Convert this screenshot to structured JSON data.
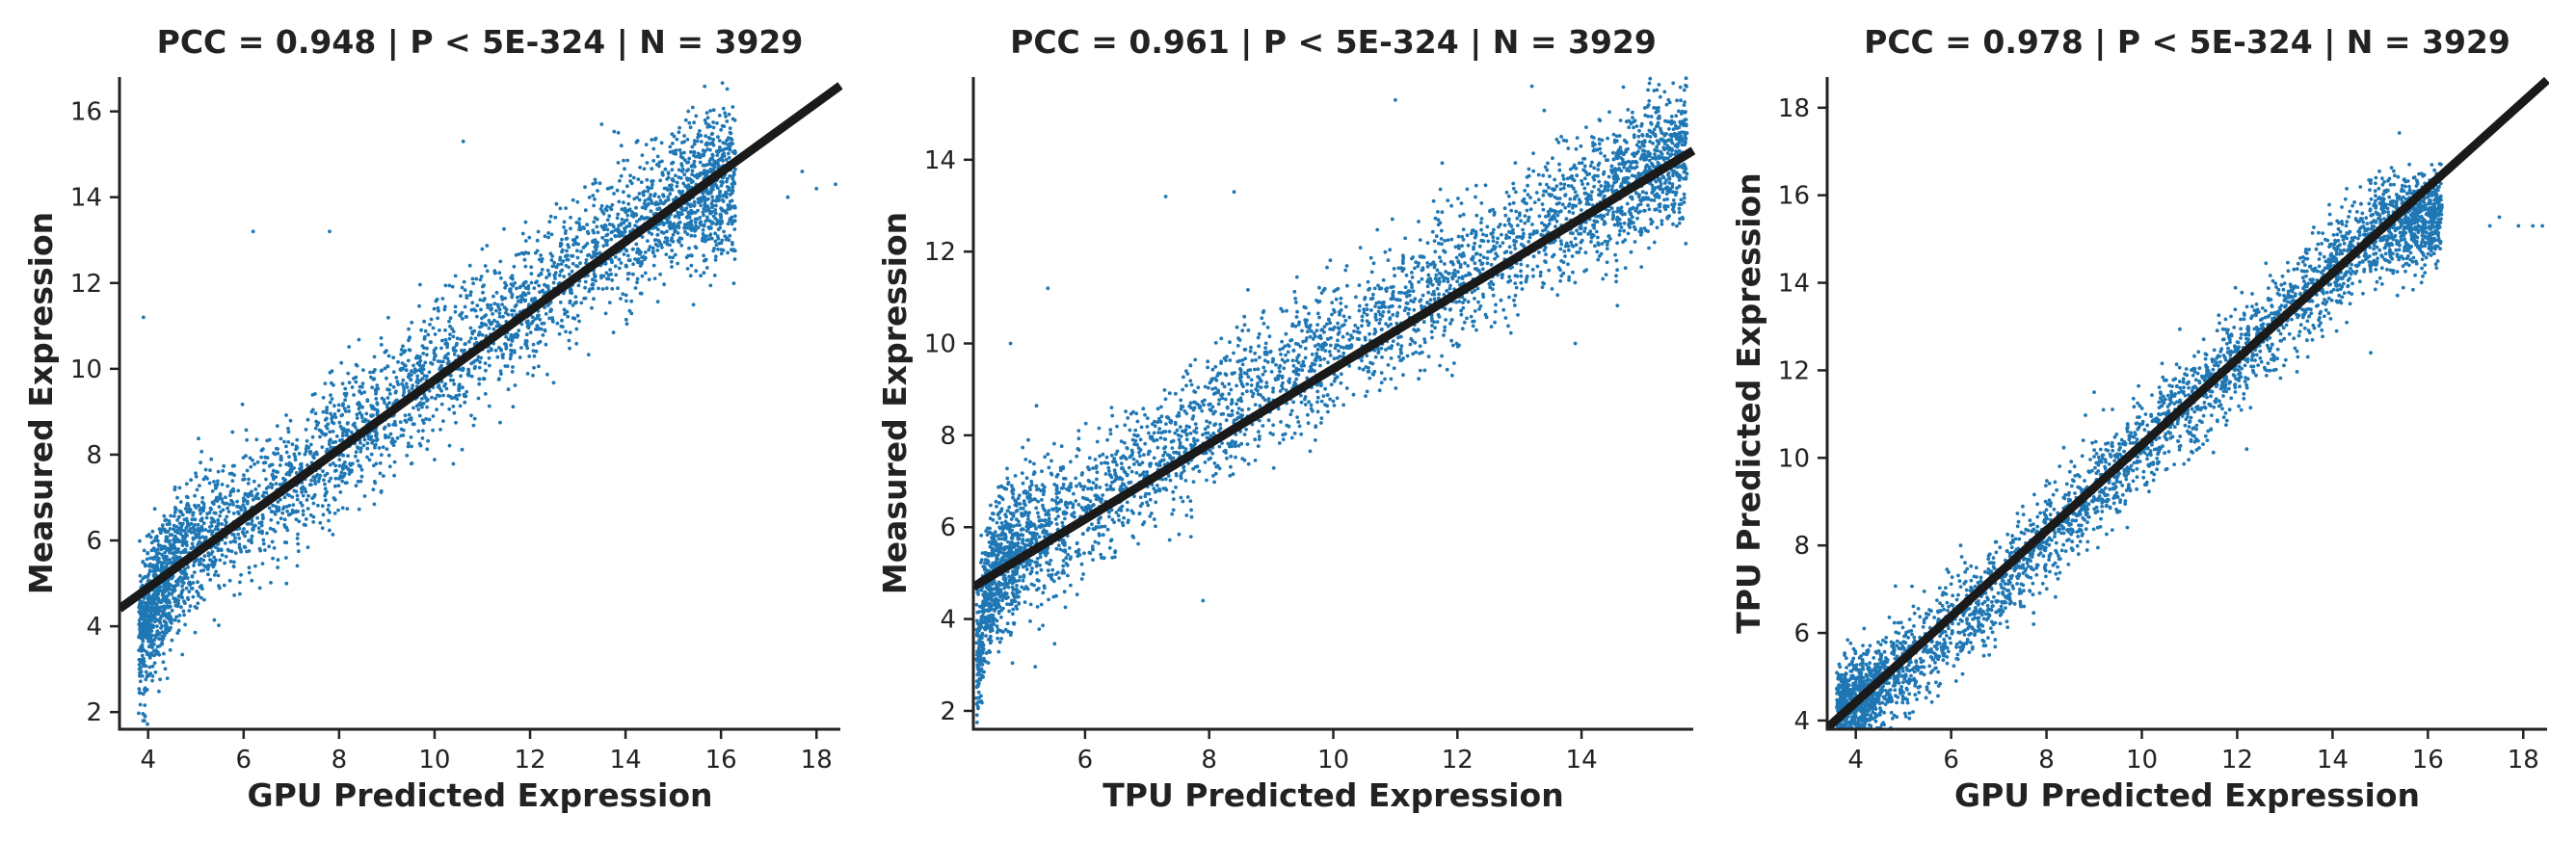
{
  "chart_data": [
    {
      "type": "scatter",
      "title": "PCC =  0.948 | P <  5E-324 | N = 3929",
      "xlabel": "GPU Predicted Expression",
      "ylabel": "Measured Expression",
      "xlim": [
        3.4,
        18.5
      ],
      "ylim": [
        1.6,
        16.8
      ],
      "xticks": [
        "4",
        "6",
        "8",
        "10",
        "12",
        "14",
        "16",
        "18"
      ],
      "yticks": [
        "2",
        "4",
        "6",
        "8",
        "10",
        "12",
        "14",
        "16"
      ],
      "point_color": "#1f77b4",
      "n_points": 3929,
      "point_cloud": {
        "trend": [
          [
            3.8,
            3.6
          ],
          [
            4.3,
            5.0
          ],
          [
            5,
            6.0
          ],
          [
            6,
            6.6
          ],
          [
            7,
            7.3
          ],
          [
            8,
            8.2
          ],
          [
            9,
            9.1
          ],
          [
            10,
            10.0
          ],
          [
            11,
            10.8
          ],
          [
            12,
            11.6
          ],
          [
            13,
            12.4
          ],
          [
            14,
            13.2
          ],
          [
            15,
            13.8
          ],
          [
            16,
            14.3
          ],
          [
            16.3,
            14.4
          ]
        ],
        "spread": 0.8,
        "outliers": [
          [
            17.4,
            14.0
          ],
          [
            17.7,
            14.6
          ],
          [
            18.0,
            14.2
          ],
          [
            18.4,
            14.3
          ],
          [
            6.2,
            13.2
          ],
          [
            3.9,
            11.2
          ],
          [
            10.6,
            15.3
          ],
          [
            13.5,
            15.7
          ],
          [
            7.8,
            13.2
          ]
        ]
      },
      "fit_line": {
        "x": [
          3.4,
          18.5
        ],
        "y": [
          4.41,
          16.6
        ]
      }
    },
    {
      "type": "scatter",
      "title": "PCC =  0.961 | P <  5E-324 | N = 3929",
      "xlabel": "TPU Predicted Expression",
      "ylabel": "Measured Expression",
      "xlim": [
        4.2,
        15.8
      ],
      "ylim": [
        1.6,
        15.8
      ],
      "xticks": [
        "6",
        "8",
        "10",
        "12",
        "14"
      ],
      "yticks": [
        "2",
        "4",
        "6",
        "8",
        "10",
        "12",
        "14"
      ],
      "point_color": "#1f77b4",
      "n_points": 3929,
      "point_cloud": {
        "trend": [
          [
            4.25,
            3.0
          ],
          [
            4.5,
            5.0
          ],
          [
            5,
            5.6
          ],
          [
            6,
            6.4
          ],
          [
            7,
            7.3
          ],
          [
            8,
            8.3
          ],
          [
            9,
            9.2
          ],
          [
            10,
            9.9
          ],
          [
            11,
            10.7
          ],
          [
            12,
            11.4
          ],
          [
            13,
            12.2
          ],
          [
            14,
            13.0
          ],
          [
            15,
            13.7
          ],
          [
            15.7,
            14.3
          ]
        ],
        "spread": 0.75,
        "outliers": [
          [
            7.3,
            13.2
          ],
          [
            8.4,
            13.3
          ],
          [
            11.0,
            15.3
          ],
          [
            13.2,
            15.6
          ],
          [
            5.4,
            11.2
          ],
          [
            4.8,
            10.0
          ],
          [
            7.9,
            4.4
          ],
          [
            13.9,
            10.0
          ]
        ]
      },
      "fit_line": {
        "x": [
          4.2,
          15.8
        ],
        "y": [
          4.7,
          14.2
        ]
      }
    },
    {
      "type": "scatter",
      "title": "PCC =  0.978 | P <  5E-324 | N = 3929",
      "xlabel": "GPU Predicted Expression",
      "ylabel": "TPU Predicted Expression",
      "xlim": [
        3.4,
        18.5
      ],
      "ylim": [
        3.8,
        18.7
      ],
      "xticks": [
        "4",
        "6",
        "8",
        "10",
        "12",
        "14",
        "16",
        "18"
      ],
      "yticks": [
        "4",
        "6",
        "8",
        "10",
        "12",
        "14",
        "16",
        "18"
      ],
      "point_color": "#1f77b4",
      "n_points": 3929,
      "point_cloud": {
        "trend": [
          [
            3.6,
            4.0
          ],
          [
            4,
            4.3
          ],
          [
            5,
            5.2
          ],
          [
            6,
            6.1
          ],
          [
            7,
            7.1
          ],
          [
            8,
            8.2
          ],
          [
            9,
            9.2
          ],
          [
            10,
            10.3
          ],
          [
            11,
            11.3
          ],
          [
            12,
            12.3
          ],
          [
            13,
            13.3
          ],
          [
            14,
            14.4
          ],
          [
            15,
            15.3
          ],
          [
            16,
            15.5
          ],
          [
            16.3,
            15.6
          ]
        ],
        "spread": 0.55,
        "outliers": [
          [
            17.3,
            15.3
          ],
          [
            17.5,
            15.5
          ],
          [
            17.9,
            15.3
          ],
          [
            18.2,
            15.3
          ],
          [
            18.4,
            15.3
          ],
          [
            14.8,
            12.4
          ],
          [
            12.2,
            10.2
          ],
          [
            9.0,
            11.5
          ],
          [
            6.2,
            8.0
          ]
        ]
      },
      "fit_line": {
        "x": [
          3.4,
          18.5
        ],
        "y": [
          3.83,
          18.63
        ]
      }
    }
  ]
}
